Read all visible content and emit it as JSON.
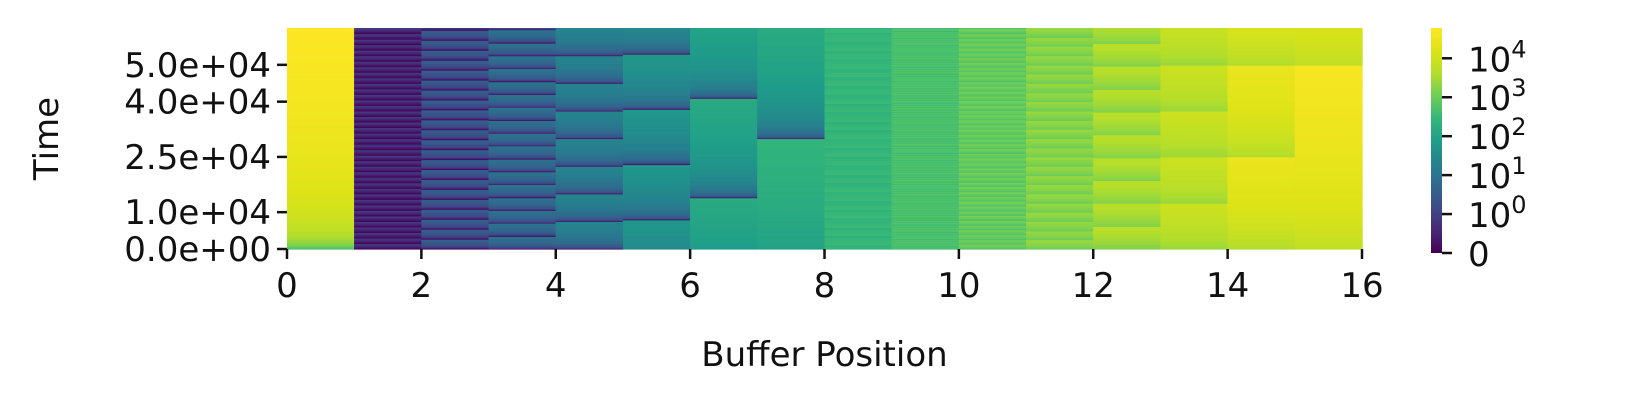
{
  "chart_data": {
    "type": "heatmap",
    "xlabel": "Buffer Position",
    "ylabel": "Time",
    "xlim": [
      0,
      16
    ],
    "ylim": [
      0,
      60000
    ],
    "x_ticks": [
      0,
      2,
      4,
      6,
      8,
      10,
      12,
      14,
      16
    ],
    "x_tick_labels": [
      "0",
      "2",
      "4",
      "6",
      "8",
      "10",
      "12",
      "14",
      "16"
    ],
    "y_ticks": [
      0,
      10000,
      25000,
      40000,
      50000
    ],
    "y_tick_labels": [
      "0.0e+00",
      "1.0e+04",
      "2.5e+04",
      "4.0e+04",
      "5.0e+04"
    ],
    "colormap": "viridis",
    "color_scale": "symlog",
    "color_range": [
      0,
      60000
    ],
    "colorbar_ticks": [
      {
        "value": 0,
        "label": "0"
      },
      {
        "value": 1,
        "label": "10",
        "sup": "0"
      },
      {
        "value": 10,
        "label": "10",
        "sup": "1"
      },
      {
        "value": 100,
        "label": "10",
        "sup": "2"
      },
      {
        "value": 1000,
        "label": "10",
        "sup": "3"
      },
      {
        "value": 10000,
        "label": "10",
        "sup": "4"
      }
    ],
    "buffer_positions": [
      {
        "position": 0,
        "pattern": "ramp",
        "start": 300,
        "end": 60000
      },
      {
        "position": 1,
        "pattern": "sawtooth",
        "period": 1500,
        "low": 0,
        "high": 1
      },
      {
        "position": 2,
        "pattern": "sawtooth",
        "period": 2700,
        "low": 0,
        "high": 4
      },
      {
        "position": 3,
        "pattern": "sawtooth",
        "period": 3500,
        "low": 0,
        "high": 10
      },
      {
        "position": 4,
        "pattern": "sawtooth",
        "period": 7500,
        "low": 0,
        "high": 25
      },
      {
        "position": 5,
        "pattern": "sawtooth",
        "period": 15000,
        "low": 0,
        "high": 60,
        "offset": 8000
      },
      {
        "position": 6,
        "pattern": "sawtooth",
        "period": 27000,
        "low": 0,
        "high": 150,
        "offset": 14000
      },
      {
        "position": 7,
        "pattern": "sawtooth",
        "period": 49000,
        "low": 0,
        "high": 250,
        "offset": 30000
      },
      {
        "position": 8,
        "pattern": "sawtooth",
        "period": 320,
        "low": 150,
        "high": 400
      },
      {
        "position": 9,
        "pattern": "sawtooth",
        "period": 650,
        "low": 300,
        "high": 700
      },
      {
        "position": 10,
        "pattern": "sawtooth",
        "period": 1300,
        "low": 500,
        "high": 1300
      },
      {
        "position": 11,
        "pattern": "sawtooth",
        "period": 2500,
        "low": 1000,
        "high": 2500
      },
      {
        "position": 12,
        "pattern": "sawtooth",
        "period": 6200,
        "low": 1500,
        "high": 5000
      },
      {
        "position": 13,
        "pattern": "sawtooth",
        "period": 12500,
        "low": 2500,
        "high": 9000
      },
      {
        "position": 14,
        "pattern": "sawtooth",
        "period": 25000,
        "low": 3500,
        "high": 28000
      },
      {
        "position": 15,
        "pattern": "sawtooth",
        "period": 50000,
        "low": 6000,
        "high": 45000
      }
    ]
  }
}
